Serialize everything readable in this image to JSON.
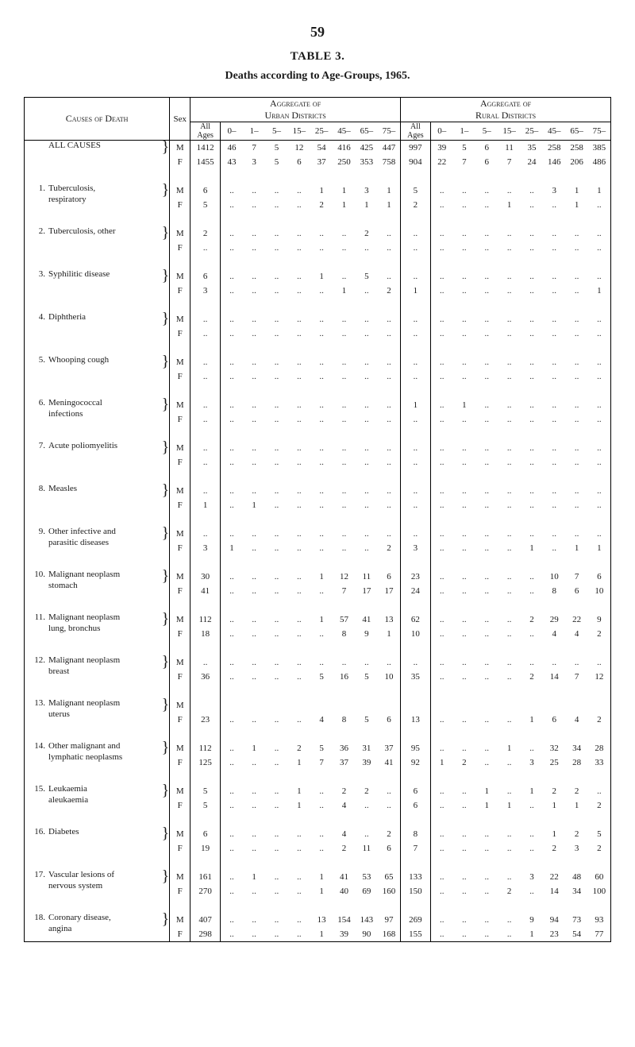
{
  "page_number": "59",
  "table_label": "TABLE 3.",
  "table_subtitle": "Deaths according to Age-Groups, 1965.",
  "header": {
    "causes": "Causes of Death",
    "sex": "Sex",
    "urban": "Aggregate of\nUrban Districts",
    "rural": "Aggregate of\nRural Districts",
    "all_ages": "All\nAges",
    "age_cols": [
      "0–",
      "1–",
      "5–",
      "15–",
      "25–",
      "45–",
      "65–",
      "75–"
    ]
  },
  "dot": "..",
  "causes": [
    {
      "num": "",
      "label": "ALL CAUSES",
      "rows": [
        {
          "sex": "M",
          "u": [
            "1412",
            "46",
            "7",
            "5",
            "12",
            "54",
            "416",
            "425",
            "447"
          ],
          "r": [
            "997",
            "39",
            "5",
            "6",
            "11",
            "35",
            "258",
            "258",
            "385"
          ]
        },
        {
          "sex": "F",
          "u": [
            "1455",
            "43",
            "3",
            "5",
            "6",
            "37",
            "250",
            "353",
            "758"
          ],
          "r": [
            "904",
            "22",
            "7",
            "6",
            "7",
            "24",
            "146",
            "206",
            "486"
          ]
        }
      ]
    },
    {
      "num": "1.",
      "label": "Tuberculosis,\nrespiratory",
      "rows": [
        {
          "sex": "M",
          "u": [
            "6",
            "",
            "",
            "",
            "",
            "1",
            "1",
            "3",
            "1"
          ],
          "r": [
            "5",
            "",
            "",
            "",
            "",
            "",
            "3",
            "1",
            "1"
          ]
        },
        {
          "sex": "F",
          "u": [
            "5",
            "",
            "",
            "",
            "",
            "2",
            "1",
            "1",
            "1"
          ],
          "r": [
            "2",
            "",
            "",
            "",
            "1",
            "",
            "",
            "1",
            ""
          ]
        }
      ]
    },
    {
      "num": "2.",
      "label": "Tuberculosis, other",
      "rows": [
        {
          "sex": "M",
          "u": [
            "2",
            "",
            "",
            "",
            "",
            "",
            "",
            "2",
            ""
          ],
          "r": [
            "",
            "",
            "",
            "",
            "",
            "",
            "",
            "",
            ""
          ]
        },
        {
          "sex": "F",
          "u": [
            "",
            "",
            "",
            "",
            "",
            "",
            "",
            "",
            ""
          ],
          "r": [
            "",
            "",
            "",
            "",
            "",
            "",
            "",
            "",
            ""
          ]
        }
      ]
    },
    {
      "num": "3.",
      "label": "Syphilitic disease",
      "rows": [
        {
          "sex": "M",
          "u": [
            "6",
            "",
            "",
            "",
            "",
            "1",
            "",
            "5",
            ""
          ],
          "r": [
            "",
            "",
            "",
            "",
            "",
            "",
            "",
            "",
            ""
          ]
        },
        {
          "sex": "F",
          "u": [
            "3",
            "",
            "",
            "",
            "",
            "",
            "1",
            "",
            "2"
          ],
          "r": [
            "1",
            "",
            "",
            "",
            "",
            "",
            "",
            "",
            "1"
          ]
        }
      ]
    },
    {
      "num": "4.",
      "label": "Diphtheria",
      "rows": [
        {
          "sex": "M",
          "u": [
            "",
            "",
            "",
            "",
            "",
            "",
            "",
            "",
            ""
          ],
          "r": [
            "",
            "",
            "",
            "",
            "",
            "",
            "",
            "",
            ""
          ]
        },
        {
          "sex": "F",
          "u": [
            "",
            "",
            "",
            "",
            "",
            "",
            "",
            "",
            ""
          ],
          "r": [
            "",
            "",
            "",
            "",
            "",
            "",
            "",
            "",
            ""
          ]
        }
      ]
    },
    {
      "num": "5.",
      "label": "Whooping cough",
      "rows": [
        {
          "sex": "M",
          "u": [
            "",
            "",
            "",
            "",
            "",
            "",
            "",
            "",
            ""
          ],
          "r": [
            "",
            "",
            "",
            "",
            "",
            "",
            "",
            "",
            ""
          ]
        },
        {
          "sex": "F",
          "u": [
            "",
            "",
            "",
            "",
            "",
            "",
            "",
            "",
            ""
          ],
          "r": [
            "",
            "",
            "",
            "",
            "",
            "",
            "",
            "",
            ""
          ]
        }
      ]
    },
    {
      "num": "6.",
      "label": "Meningococcal\ninfections",
      "rows": [
        {
          "sex": "M",
          "u": [
            "",
            "",
            "",
            "",
            "",
            "",
            "",
            "",
            ""
          ],
          "r": [
            "1",
            "",
            "1",
            "",
            "",
            "",
            "",
            "",
            ""
          ]
        },
        {
          "sex": "F",
          "u": [
            "",
            "",
            "",
            "",
            "",
            "",
            "",
            "",
            ""
          ],
          "r": [
            "",
            "",
            "",
            "",
            "",
            "",
            "",
            "",
            ""
          ]
        }
      ]
    },
    {
      "num": "7.",
      "label": "Acute poliomyelitis",
      "rows": [
        {
          "sex": "M",
          "u": [
            "",
            "",
            "",
            "",
            "",
            "",
            "",
            "",
            ""
          ],
          "r": [
            "",
            "",
            "",
            "",
            "",
            "",
            "",
            "",
            ""
          ]
        },
        {
          "sex": "F",
          "u": [
            "",
            "",
            "",
            "",
            "",
            "",
            "",
            "",
            ""
          ],
          "r": [
            "",
            "",
            "",
            "",
            "",
            "",
            "",
            "",
            ""
          ]
        }
      ]
    },
    {
      "num": "8.",
      "label": "Measles",
      "rows": [
        {
          "sex": "M",
          "u": [
            "",
            "",
            "",
            "",
            "",
            "",
            "",
            "",
            ""
          ],
          "r": [
            "",
            "",
            "",
            "",
            "",
            "",
            "",
            "",
            ""
          ]
        },
        {
          "sex": "F",
          "u": [
            "1",
            "",
            "1",
            "",
            "",
            "",
            "",
            "",
            ""
          ],
          "r": [
            "",
            "",
            "",
            "",
            "",
            "",
            "",
            "",
            ""
          ]
        }
      ]
    },
    {
      "num": "9.",
      "label": "Other infective and\nparasitic diseases",
      "rows": [
        {
          "sex": "M",
          "u": [
            "",
            "",
            "",
            "",
            "",
            "",
            "",
            "",
            ""
          ],
          "r": [
            "",
            "",
            "",
            "",
            "",
            "",
            "",
            "",
            ""
          ]
        },
        {
          "sex": "F",
          "u": [
            "3",
            "1",
            "",
            "",
            "",
            "",
            "",
            "",
            "2"
          ],
          "r": [
            "3",
            "",
            "",
            "",
            "",
            "1",
            "",
            "1",
            "1"
          ]
        }
      ]
    },
    {
      "num": "10.",
      "label": "Malignant neoplasm\nstomach",
      "rows": [
        {
          "sex": "M",
          "u": [
            "30",
            "",
            "",
            "",
            "",
            "1",
            "12",
            "11",
            "6"
          ],
          "r": [
            "23",
            "",
            "",
            "",
            "",
            "",
            "10",
            "7",
            "6"
          ]
        },
        {
          "sex": "F",
          "u": [
            "41",
            "",
            "",
            "",
            "",
            "",
            "7",
            "17",
            "17"
          ],
          "r": [
            "24",
            "",
            "",
            "",
            "",
            "",
            "8",
            "6",
            "10"
          ]
        }
      ]
    },
    {
      "num": "11.",
      "label": "Malignant neoplasm\nlung, bronchus",
      "rows": [
        {
          "sex": "M",
          "u": [
            "112",
            "",
            "",
            "",
            "",
            "1",
            "57",
            "41",
            "13"
          ],
          "r": [
            "62",
            "",
            "",
            "",
            "",
            "2",
            "29",
            "22",
            "9"
          ]
        },
        {
          "sex": "F",
          "u": [
            "18",
            "",
            "",
            "",
            "",
            "",
            "8",
            "9",
            "1"
          ],
          "r": [
            "10",
            "",
            "",
            "",
            "",
            "",
            "4",
            "4",
            "2"
          ]
        }
      ]
    },
    {
      "num": "12.",
      "label": "Malignant neoplasm\nbreast",
      "rows": [
        {
          "sex": "M",
          "u": [
            "",
            "",
            "",
            "",
            "",
            "",
            "",
            "",
            ""
          ],
          "r": [
            "",
            "",
            "",
            "",
            "",
            "",
            "",
            "",
            ""
          ]
        },
        {
          "sex": "F",
          "u": [
            "36",
            "",
            "",
            "",
            "",
            "5",
            "16",
            "5",
            "10"
          ],
          "r": [
            "35",
            "",
            "",
            "",
            "",
            "2",
            "14",
            "7",
            "12"
          ]
        }
      ]
    },
    {
      "num": "13.",
      "label": "Malignant neoplasm\nuterus",
      "rows": [
        {
          "sex": "M",
          "u": null,
          "r": null
        },
        {
          "sex": "F",
          "u": [
            "23",
            "",
            "",
            "",
            "",
            "4",
            "8",
            "5",
            "6"
          ],
          "r": [
            "13",
            "",
            "",
            "",
            "",
            "1",
            "6",
            "4",
            "2"
          ]
        }
      ]
    },
    {
      "num": "14.",
      "label": "Other malignant and\nlymphatic neoplasms",
      "rows": [
        {
          "sex": "M",
          "u": [
            "112",
            "",
            "1",
            "",
            "2",
            "5",
            "36",
            "31",
            "37"
          ],
          "r": [
            "95",
            "",
            "",
            "",
            "1",
            "",
            "32",
            "34",
            "28"
          ]
        },
        {
          "sex": "F",
          "u": [
            "125",
            "",
            "",
            "",
            "1",
            "7",
            "37",
            "39",
            "41"
          ],
          "r": [
            "92",
            "1",
            "2",
            "",
            "",
            "3",
            "25",
            "28",
            "33"
          ]
        }
      ]
    },
    {
      "num": "15.",
      "label": "Leukaemia\naleukaemia",
      "rows": [
        {
          "sex": "M",
          "u": [
            "5",
            "",
            "",
            "",
            "1",
            "",
            "2",
            "2",
            ""
          ],
          "r": [
            "6",
            "",
            "",
            "1",
            "",
            "1",
            "2",
            "2",
            ""
          ]
        },
        {
          "sex": "F",
          "u": [
            "5",
            "",
            "",
            "",
            "1",
            "",
            "4",
            "",
            ""
          ],
          "r": [
            "6",
            "",
            "",
            "1",
            "1",
            "",
            "1",
            "1",
            "2"
          ]
        }
      ]
    },
    {
      "num": "16.",
      "label": "Diabetes",
      "rows": [
        {
          "sex": "M",
          "u": [
            "6",
            "",
            "",
            "",
            "",
            "",
            "4",
            "",
            "2"
          ],
          "r": [
            "8",
            "",
            "",
            "",
            "",
            "",
            "1",
            "2",
            "5"
          ]
        },
        {
          "sex": "F",
          "u": [
            "19",
            "",
            "",
            "",
            "",
            "",
            "2",
            "11",
            "6"
          ],
          "r": [
            "7",
            "",
            "",
            "",
            "",
            "",
            "2",
            "3",
            "2"
          ]
        }
      ]
    },
    {
      "num": "17.",
      "label": "Vascular lesions of\nnervous system",
      "rows": [
        {
          "sex": "M",
          "u": [
            "161",
            "",
            "1",
            "",
            "",
            "1",
            "41",
            "53",
            "65"
          ],
          "r": [
            "133",
            "",
            "",
            "",
            "",
            "3",
            "22",
            "48",
            "60"
          ]
        },
        {
          "sex": "F",
          "u": [
            "270",
            "",
            "",
            "",
            "",
            "1",
            "40",
            "69",
            "160"
          ],
          "r": [
            "150",
            "",
            "",
            "",
            "2",
            "",
            "14",
            "34",
            "100"
          ]
        }
      ]
    },
    {
      "num": "18.",
      "label": "Coronary disease,\nangina",
      "rows": [
        {
          "sex": "M",
          "u": [
            "407",
            "",
            "",
            "",
            "",
            "13",
            "154",
            "143",
            "97"
          ],
          "r": [
            "269",
            "",
            "",
            "",
            "",
            "9",
            "94",
            "73",
            "93"
          ]
        },
        {
          "sex": "F",
          "u": [
            "298",
            "",
            "",
            "",
            "",
            "1",
            "39",
            "90",
            "168"
          ],
          "r": [
            "155",
            "",
            "",
            "",
            "",
            "1",
            "23",
            "54",
            "77"
          ]
        }
      ]
    }
  ],
  "colors": {
    "text": "#1a1a1a",
    "rule": "#000000",
    "background": "#ffffff"
  },
  "fonts": {
    "body_family": "Times New Roman",
    "body_size_pt": 10,
    "title_size_pt": 14
  }
}
